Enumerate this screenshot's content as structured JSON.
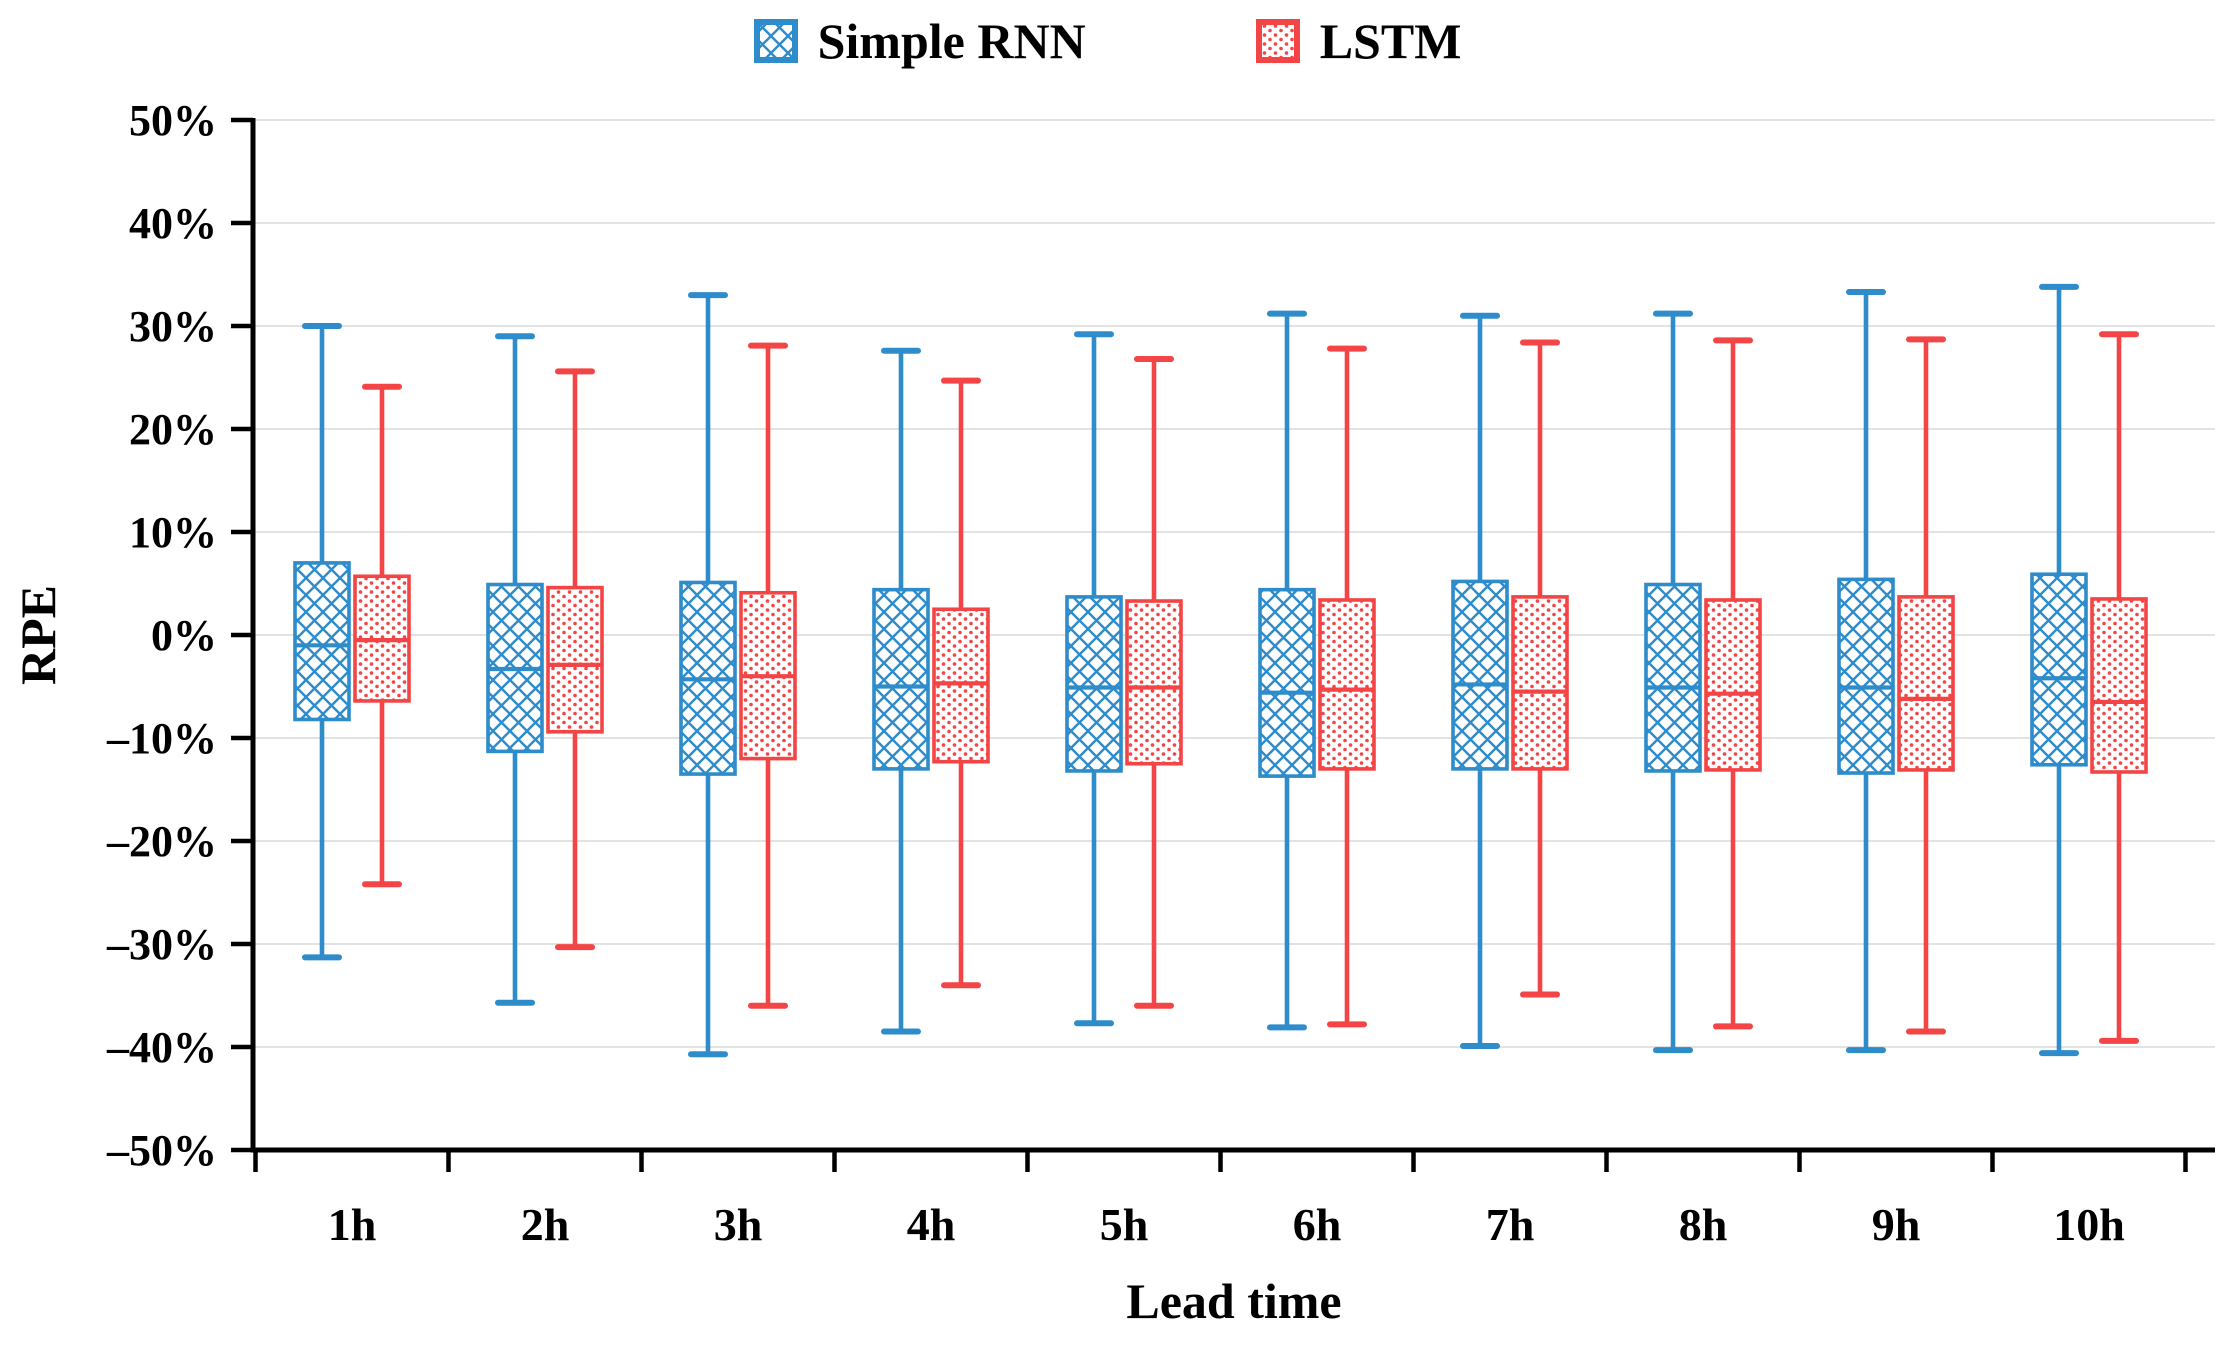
{
  "figure": {
    "background": "#ffffff",
    "accent_blue": "#2E8CCB",
    "accent_red": "#F34546",
    "gridline_color": "#D9D9D9",
    "axis_color": "#000000"
  },
  "legend": {
    "position": "top-center",
    "items": [
      {
        "label": "Simple RNN",
        "color": "#2E8CCB",
        "pattern": "crosshatch"
      },
      {
        "label": "LSTM",
        "color": "#F34546",
        "pattern": "dots"
      }
    ]
  },
  "chart_data": {
    "type": "boxplot",
    "title": "",
    "xlabel": "Lead time",
    "ylabel": "RPE",
    "categories": [
      "1h",
      "2h",
      "3h",
      "4h",
      "5h",
      "6h",
      "7h",
      "8h",
      "9h",
      "10h"
    ],
    "grid": "horizontal",
    "y_axis": {
      "min": -50,
      "max": 50,
      "step": 10,
      "unit": "percent",
      "tick_labels": [
        "50%",
        "40%",
        "30%",
        "20%",
        "10%",
        "0%",
        "–10%",
        "–20%",
        "–30%",
        "–40%",
        "–50%"
      ]
    },
    "series": [
      {
        "name": "Simple RNN",
        "color": "#2E8CCB",
        "pattern": "crosshatch",
        "boxes": [
          {
            "category": "1h",
            "whisker_high": 30.0,
            "q3": 7.0,
            "median": -1.0,
            "q1": -8.2,
            "whisker_low": -31.3
          },
          {
            "category": "2h",
            "whisker_high": 29.0,
            "q3": 4.9,
            "median": -3.3,
            "q1": -11.3,
            "whisker_low": -35.7
          },
          {
            "category": "3h",
            "whisker_high": 33.0,
            "q3": 5.1,
            "median": -4.3,
            "q1": -13.5,
            "whisker_low": -40.7
          },
          {
            "category": "4h",
            "whisker_high": 27.6,
            "q3": 4.4,
            "median": -5.0,
            "q1": -13.0,
            "whisker_low": -38.5
          },
          {
            "category": "5h",
            "whisker_high": 29.2,
            "q3": 3.7,
            "median": -5.1,
            "q1": -13.2,
            "whisker_low": -37.7
          },
          {
            "category": "6h",
            "whisker_high": 31.2,
            "q3": 4.4,
            "median": -5.6,
            "q1": -13.7,
            "whisker_low": -38.1
          },
          {
            "category": "7h",
            "whisker_high": 31.0,
            "q3": 5.2,
            "median": -4.8,
            "q1": -13.0,
            "whisker_low": -39.9
          },
          {
            "category": "8h",
            "whisker_high": 31.2,
            "q3": 4.9,
            "median": -5.1,
            "q1": -13.2,
            "whisker_low": -40.3
          },
          {
            "category": "9h",
            "whisker_high": 33.3,
            "q3": 5.4,
            "median": -5.1,
            "q1": -13.4,
            "whisker_low": -40.3
          },
          {
            "category": "10h",
            "whisker_high": 33.8,
            "q3": 5.9,
            "median": -4.2,
            "q1": -12.6,
            "whisker_low": -40.6
          }
        ]
      },
      {
        "name": "LSTM",
        "color": "#F34546",
        "pattern": "dots",
        "boxes": [
          {
            "category": "1h",
            "whisker_high": 24.1,
            "q3": 5.7,
            "median": -0.5,
            "q1": -6.4,
            "whisker_low": -24.2
          },
          {
            "category": "2h",
            "whisker_high": 25.6,
            "q3": 4.6,
            "median": -2.9,
            "q1": -9.4,
            "whisker_low": -30.3
          },
          {
            "category": "3h",
            "whisker_high": 28.1,
            "q3": 4.1,
            "median": -4.0,
            "q1": -12.0,
            "whisker_low": -36.0
          },
          {
            "category": "4h",
            "whisker_high": 24.7,
            "q3": 2.5,
            "median": -4.7,
            "q1": -12.3,
            "whisker_low": -34.0
          },
          {
            "category": "5h",
            "whisker_high": 26.8,
            "q3": 3.3,
            "median": -5.1,
            "q1": -12.5,
            "whisker_low": -36.0
          },
          {
            "category": "6h",
            "whisker_high": 27.8,
            "q3": 3.4,
            "median": -5.3,
            "q1": -13.0,
            "whisker_low": -37.8
          },
          {
            "category": "7h",
            "whisker_high": 28.4,
            "q3": 3.7,
            "median": -5.5,
            "q1": -13.0,
            "whisker_low": -34.9
          },
          {
            "category": "8h",
            "whisker_high": 28.6,
            "q3": 3.4,
            "median": -5.7,
            "q1": -13.1,
            "whisker_low": -38.0
          },
          {
            "category": "9h",
            "whisker_high": 28.7,
            "q3": 3.7,
            "median": -6.2,
            "q1": -13.1,
            "whisker_low": -38.5
          },
          {
            "category": "10h",
            "whisker_high": 29.2,
            "q3": 3.5,
            "median": -6.5,
            "q1": -13.3,
            "whisker_low": -39.4
          }
        ]
      }
    ]
  }
}
